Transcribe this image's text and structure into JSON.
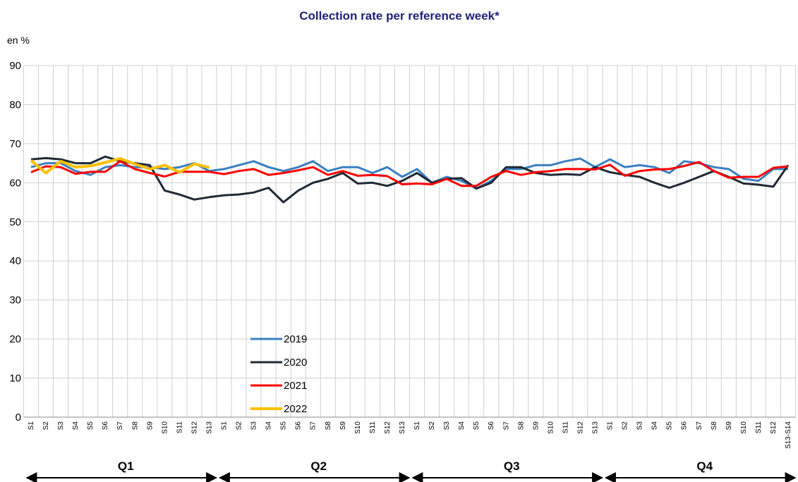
{
  "chart_data": {
    "type": "line",
    "title": "Collection rate per reference week*",
    "y_label": "en %",
    "categories": [
      "S1",
      "S2",
      "S3",
      "S4",
      "S5",
      "S6",
      "S7",
      "S8",
      "S9",
      "S10",
      "S11",
      "S12",
      "S13",
      "S1",
      "S2",
      "S3",
      "S4",
      "S5",
      "S6",
      "S7",
      "S8",
      "S9",
      "S10",
      "S11",
      "S12",
      "S13",
      "S1",
      "S2",
      "S3",
      "S4",
      "S5",
      "S6",
      "S7",
      "S8",
      "S9",
      "S10",
      "S11",
      "S12",
      "S13",
      "S1",
      "S2",
      "S3",
      "S4",
      "S5",
      "S6",
      "S7",
      "S8",
      "S9",
      "S10",
      "S11",
      "S12",
      "S13-S14"
    ],
    "quarters": [
      "Q1",
      "Q2",
      "Q3",
      "Q4"
    ],
    "series": [
      {
        "name": "2019",
        "color": "#3a7fc1",
        "values": [
          64,
          65,
          65,
          63,
          62,
          64,
          64.5,
          64,
          64,
          63.5,
          64,
          65,
          63,
          63.5,
          64.5,
          65.5,
          64,
          63,
          64,
          65.5,
          63,
          64,
          64,
          62.5,
          64,
          61.5,
          63.5,
          60,
          61.5,
          60.5,
          58.5,
          60.5,
          63.5,
          63.5,
          64.5,
          64.5,
          65.5,
          66.2,
          64,
          66,
          64,
          64.5,
          64,
          62.5,
          65.5,
          65,
          64,
          63.5,
          61,
          60.5,
          63.5,
          63.5
        ]
      },
      {
        "name": "2020",
        "color": "#1f2a36",
        "values": [
          66,
          66.3,
          66,
          65,
          65,
          66.7,
          65.5,
          65,
          64.5,
          58,
          57,
          55.7,
          56.3,
          56.8,
          57,
          57.5,
          58.7,
          55,
          58,
          60,
          61,
          62.5,
          59.8,
          60,
          59.2,
          60.5,
          62.5,
          60,
          61,
          61.2,
          58.5,
          60,
          64,
          64,
          62.5,
          62,
          62.2,
          62,
          64,
          62.7,
          62,
          61.5,
          60,
          58.7,
          60,
          61.5,
          63,
          61.5,
          59.8,
          59.5,
          59,
          64.5
        ]
      },
      {
        "name": "2021",
        "color": "#ff0000",
        "values": [
          62.7,
          64.2,
          64,
          62.3,
          62.8,
          62.8,
          65.5,
          63.5,
          62.5,
          61.6,
          62.8,
          62.8,
          62.8,
          62.2,
          63,
          63.5,
          62,
          62.5,
          63.2,
          64,
          62,
          63,
          61.8,
          62,
          61.7,
          59.6,
          59.8,
          59.6,
          61,
          59.2,
          59.2,
          61.5,
          63,
          62,
          62.7,
          63,
          63.5,
          63.5,
          63.4,
          64.6,
          61.8,
          63,
          63.4,
          63.5,
          64.3,
          65.3,
          63,
          61.3,
          61.5,
          61.5,
          63.8,
          64.2
        ]
      },
      {
        "name": "2022",
        "color": "#ffc000",
        "values": [
          65.7,
          62.5,
          65.5,
          64,
          64.3,
          65.2,
          66.2,
          64.8,
          63.5,
          64.5,
          62.7,
          64.8,
          63.9,
          null,
          null,
          null,
          null,
          null,
          null,
          null,
          null,
          null,
          null,
          null,
          null,
          null,
          null,
          null,
          null,
          null,
          null,
          null,
          null,
          null,
          null,
          null,
          null,
          null,
          null,
          null,
          null,
          null,
          null,
          null,
          null,
          null,
          null,
          null,
          null,
          null,
          null,
          null
        ]
      }
    ],
    "ylim": [
      0,
      90
    ],
    "yticks": [
      0,
      10,
      20,
      30,
      40,
      50,
      60,
      70,
      80,
      90
    ],
    "grid": true
  }
}
